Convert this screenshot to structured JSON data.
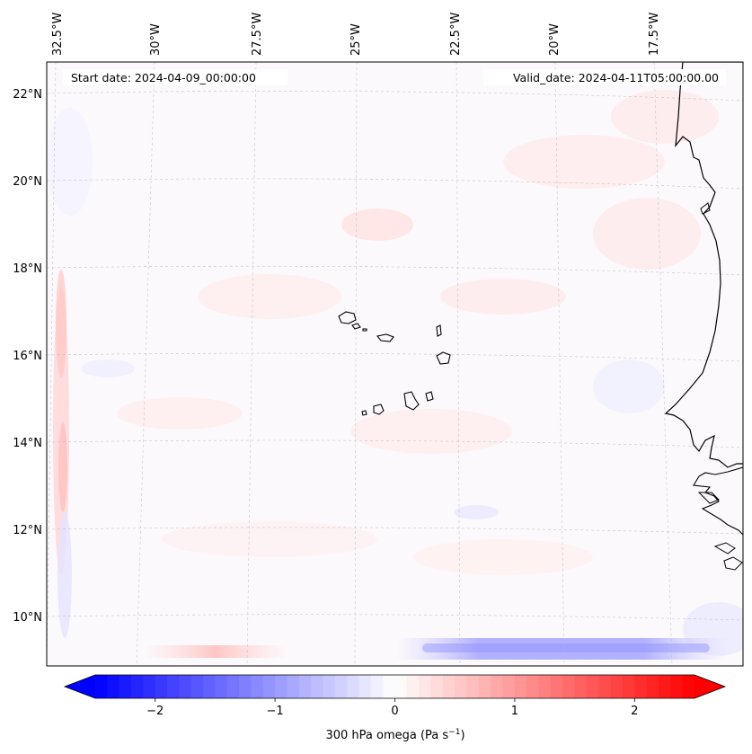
{
  "header": {
    "start_date": "Start date: 2024-04-09_00:00:00",
    "valid_date": "Valid_date: 2024-04-11T05:00:00.00"
  },
  "map": {
    "lon_labels": [
      "32.5°W",
      "30°W",
      "27.5°W",
      "25°W",
      "22.5°W",
      "20°W",
      "17.5°W"
    ],
    "lat_labels": [
      "22°N",
      "20°N",
      "18°N",
      "16°N",
      "14°N",
      "12°N",
      "10°N"
    ],
    "gridlines": true
  },
  "colorbar": {
    "tick_labels": [
      "−2",
      "−1",
      "0",
      "1",
      "2"
    ],
    "tick_values": [
      -2,
      -1,
      0,
      1,
      2
    ],
    "range": [
      -2.5,
      2.5
    ],
    "label_prefix": "300 hPa omega (Pa s",
    "label_exponent": "−1",
    "label_suffix": ")",
    "colors": {
      "negative": "#0000ff",
      "neutral": "#ffffff",
      "positive": "#ff0000"
    }
  }
}
